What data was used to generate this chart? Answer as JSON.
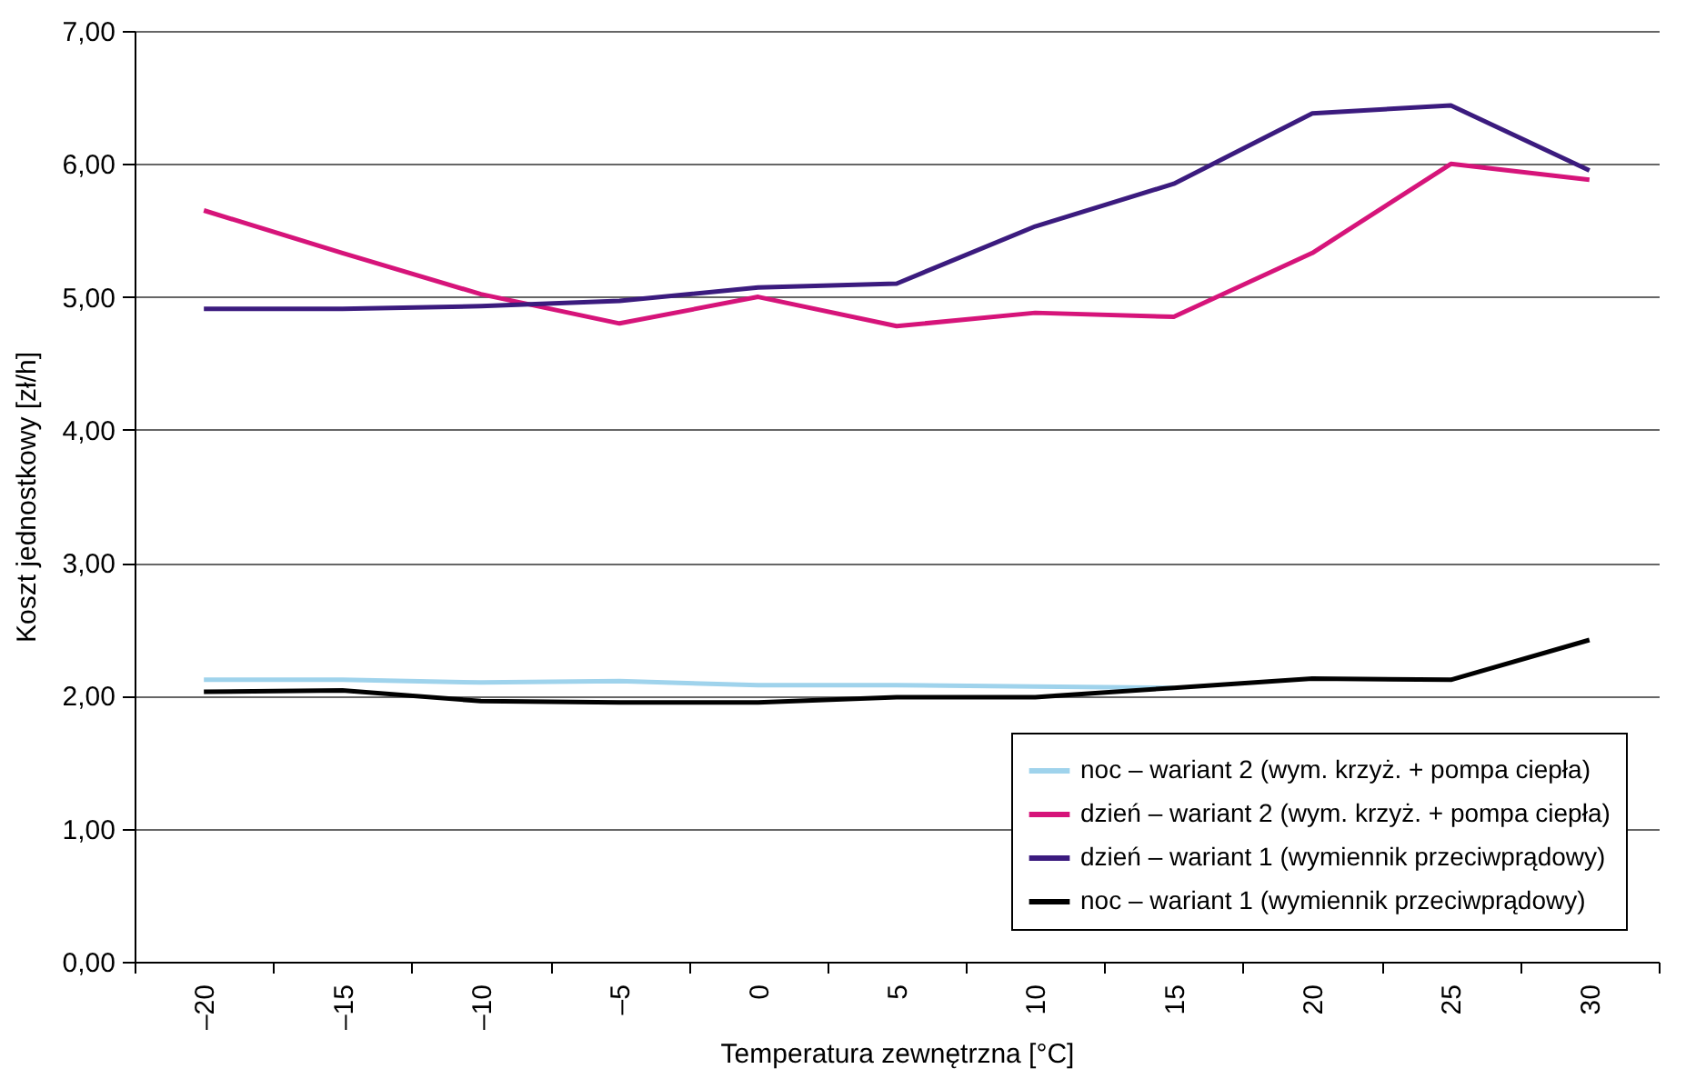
{
  "chart_data": {
    "type": "line",
    "xlabel": "Temperatura zewnętrzna [°C]",
    "ylabel": "Koszt jednostkowy [zł/h]",
    "categories": [
      "–20",
      "–15",
      "–10",
      "–5",
      "0",
      "5",
      "10",
      "15",
      "20",
      "25",
      "30"
    ],
    "ylim": [
      0,
      7
    ],
    "yticks": [
      {
        "value": 0,
        "label": "0,00"
      },
      {
        "value": 1,
        "label": "1,00"
      },
      {
        "value": 2,
        "label": "2,00"
      },
      {
        "value": 3,
        "label": "3,00"
      },
      {
        "value": 4,
        "label": "4,00"
      },
      {
        "value": 5,
        "label": "5,00"
      },
      {
        "value": 6,
        "label": "6,00"
      },
      {
        "value": 7,
        "label": "7,00"
      }
    ],
    "grid": "y",
    "legend": "bottom right",
    "marker": "none",
    "line_style": "solid",
    "series": [
      {
        "name": "noc – wariant 2 (wym. krzyż. + pompa ciepła)",
        "color": "#9fd3ec",
        "values": [
          2.12,
          2.12,
          2.1,
          2.11,
          2.08,
          2.08,
          2.07,
          2.06,
          null,
          null,
          null
        ]
      },
      {
        "name": "dzień – wariant 2 (wym. krzyż. + pompa ciepła)",
        "color": "#d6147a",
        "values": [
          5.65,
          5.33,
          5.02,
          4.8,
          5.0,
          4.78,
          4.88,
          4.85,
          5.33,
          6.0,
          5.88
        ]
      },
      {
        "name": "dzień – wariant 1 (wymiennik przeciwprądowy)",
        "color": "#3b1b7e",
        "values": [
          4.91,
          4.91,
          4.93,
          4.97,
          5.07,
          5.1,
          5.53,
          5.85,
          6.38,
          6.44,
          5.95
        ]
      },
      {
        "name": "noc – wariant 1 (wymiennik przeciwprądowy)",
        "color": "#000000",
        "values": [
          2.03,
          2.04,
          1.96,
          1.95,
          1.95,
          1.99,
          1.99,
          2.06,
          2.13,
          2.12,
          2.42
        ]
      }
    ]
  }
}
